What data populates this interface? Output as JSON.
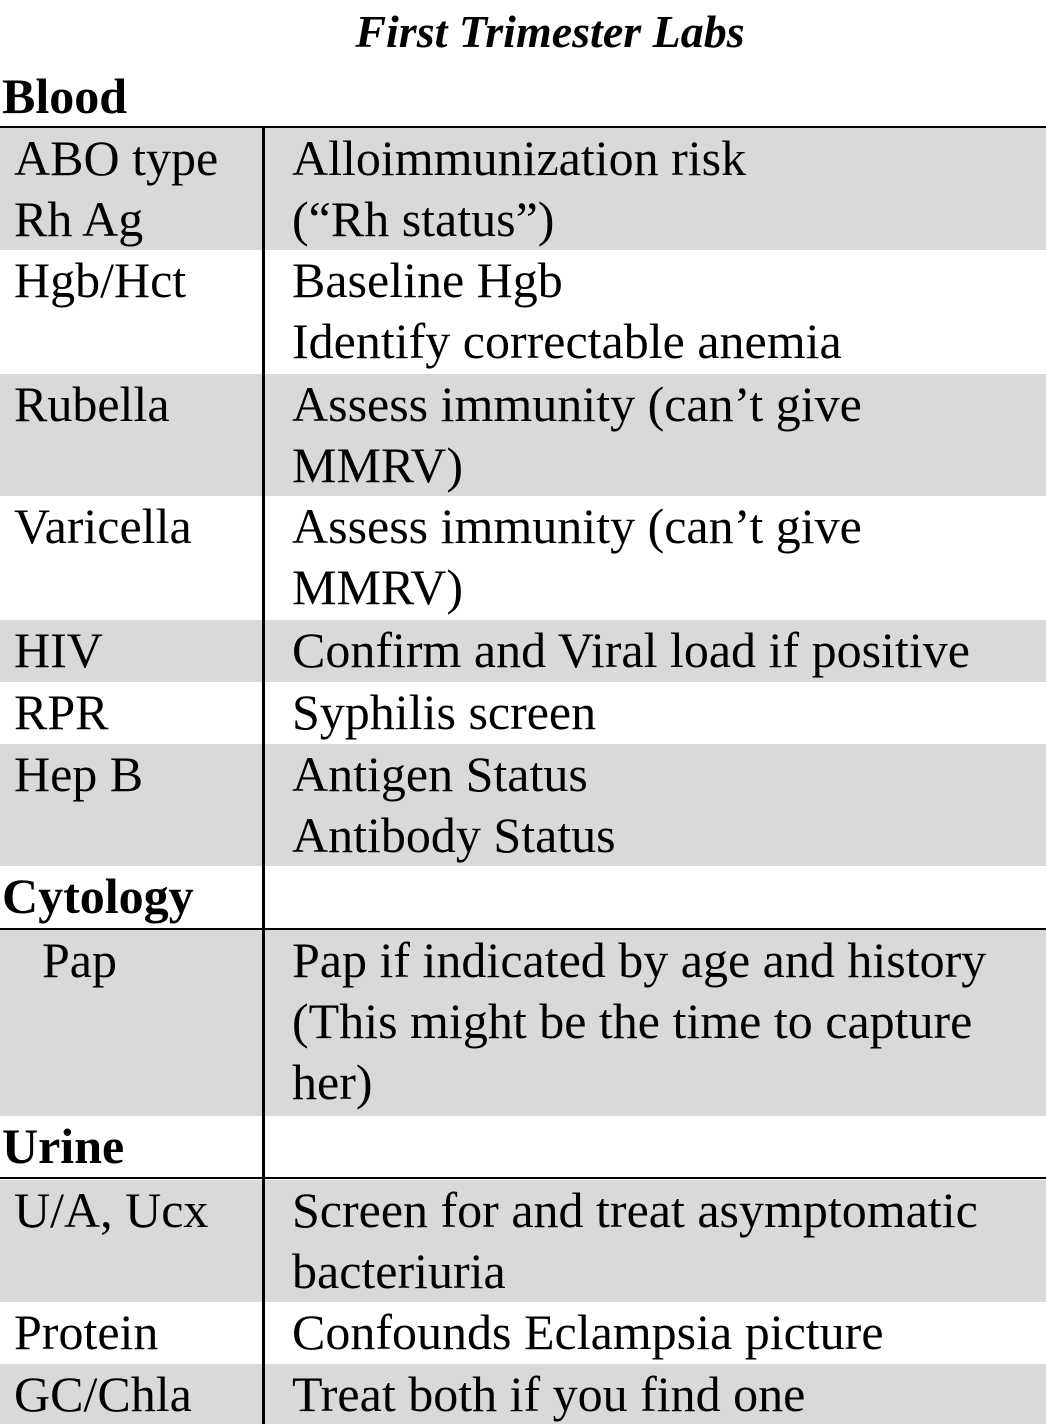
{
  "title": "First Trimester Labs",
  "sections": {
    "blood": {
      "label": "Blood",
      "rows": [
        {
          "test": [
            "ABO type",
            "Rh Ag"
          ],
          "purpose": [
            "Alloimmunization risk",
            "(“Rh status”)"
          ]
        },
        {
          "test": [
            "Hgb/Hct"
          ],
          "purpose": [
            "Baseline Hgb",
            "Identify correctable anemia"
          ]
        },
        {
          "test": [
            "Rubella"
          ],
          "purpose": [
            "Assess immunity (can’t give",
            "MMRV)"
          ]
        },
        {
          "test": [
            "Varicella"
          ],
          "purpose": [
            "Assess immunity (can’t give",
            "MMRV)"
          ]
        },
        {
          "test": [
            "HIV"
          ],
          "purpose": [
            "Confirm and Viral load if positive"
          ]
        },
        {
          "test": [
            "RPR"
          ],
          "purpose": [
            "Syphilis screen"
          ]
        },
        {
          "test": [
            "Hep B"
          ],
          "purpose": [
            "Antigen Status",
            "Antibody Status"
          ]
        }
      ]
    },
    "cytology": {
      "label": "Cytology",
      "rows": [
        {
          "test": [
            "Pap"
          ],
          "purpose": [
            "Pap if indicated by age and history",
            "(This might be the time to capture",
            "her)"
          ]
        }
      ]
    },
    "urine": {
      "label": "Urine",
      "rows": [
        {
          "test": [
            "U/A, Ucx"
          ],
          "purpose": [
            "Screen for and treat asymptomatic",
            "bacteriuria"
          ]
        },
        {
          "test": [
            "Protein"
          ],
          "purpose": [
            "Confounds Eclampsia picture"
          ]
        },
        {
          "test": [
            "GC/Chla"
          ],
          "purpose": [
            "Treat both if you find one"
          ]
        }
      ]
    }
  }
}
